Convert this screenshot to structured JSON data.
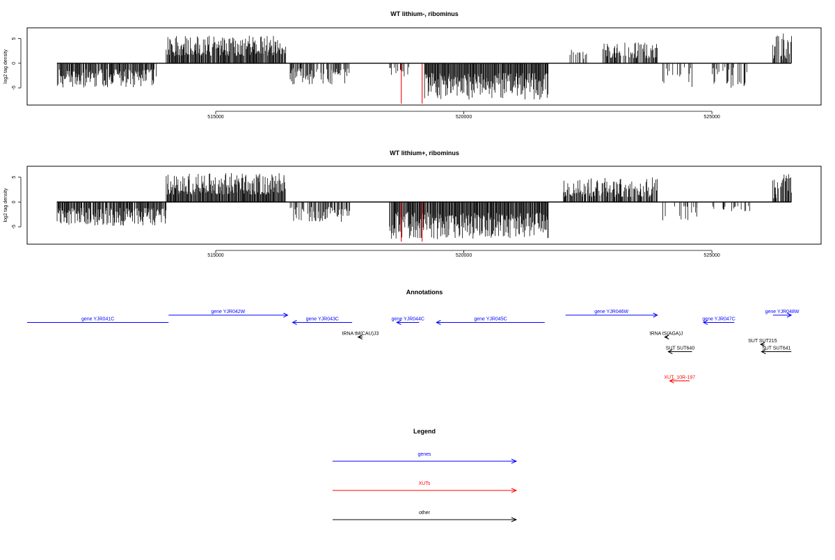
{
  "colors": {
    "gene": "#0000ff",
    "xut": "#ff0000",
    "other": "#000000",
    "highlight": "#ff0000"
  },
  "chart_data": [
    {
      "type": "bar",
      "title": "WT lithium-, ribominus",
      "ylabel": "log2 tag density",
      "xlim": [
        511200,
        527200
      ],
      "ylim": [
        -8.5,
        7.2
      ],
      "x_ticks": [
        515000,
        520000,
        525000
      ],
      "x_tick_labels": [
        "515000",
        "520000",
        "525000"
      ],
      "y_ticks": [
        -5,
        0,
        5
      ],
      "y_tick_labels": [
        "-5",
        "0",
        "5"
      ],
      "baseline": [
        511800,
        526600
      ],
      "segments": [
        {
          "from": 511800,
          "to": 513800,
          "sign": -1,
          "min": 1.2,
          "max": 5.0,
          "density": 0.9
        },
        {
          "from": 514000,
          "to": 516400,
          "sign": 1,
          "min": 1.5,
          "max": 5.6,
          "density": 0.95
        },
        {
          "from": 516500,
          "to": 517700,
          "sign": -1,
          "min": 1.0,
          "max": 4.4,
          "density": 0.6
        },
        {
          "from": 518500,
          "to": 518900,
          "sign": -1,
          "min": 0.8,
          "max": 2.8,
          "density": 0.4
        },
        {
          "from": 519200,
          "to": 521700,
          "sign": -1,
          "min": 2.0,
          "max": 7.4,
          "density": 1.0
        },
        {
          "from": 522100,
          "to": 522500,
          "sign": 1,
          "min": 0.8,
          "max": 3.0,
          "density": 0.4
        },
        {
          "from": 522800,
          "to": 523900,
          "sign": 1,
          "min": 1.0,
          "max": 4.2,
          "density": 0.6
        },
        {
          "from": 524000,
          "to": 524600,
          "sign": -1,
          "min": 0.8,
          "max": 5.2,
          "density": 0.2
        },
        {
          "from": 525000,
          "to": 525700,
          "sign": -1,
          "min": 0.8,
          "max": 5.0,
          "density": 0.35
        },
        {
          "from": 526200,
          "to": 526600,
          "sign": 1,
          "min": 0.6,
          "max": 6.6,
          "density": 0.6
        }
      ],
      "highlights": [
        {
          "x": 518740,
          "value": -8.2
        },
        {
          "x": 519160,
          "value": -8.2
        }
      ]
    },
    {
      "type": "bar",
      "title": "WT lithium+, ribominus",
      "ylabel": "log2 tag density",
      "xlim": [
        511200,
        527200
      ],
      "ylim": [
        -8.5,
        7.2
      ],
      "x_ticks": [
        515000,
        520000,
        525000
      ],
      "x_tick_labels": [
        "515000",
        "520000",
        "525000"
      ],
      "y_ticks": [
        -5,
        0,
        5
      ],
      "y_tick_labels": [
        "-5",
        "0",
        "5"
      ],
      "baseline": [
        511800,
        526600
      ],
      "segments": [
        {
          "from": 511800,
          "to": 514000,
          "sign": -1,
          "min": 1.2,
          "max": 4.8,
          "density": 0.9
        },
        {
          "from": 514000,
          "to": 516400,
          "sign": 1,
          "min": 1.5,
          "max": 5.8,
          "density": 1.0
        },
        {
          "from": 516500,
          "to": 517700,
          "sign": -1,
          "min": 1.0,
          "max": 4.0,
          "density": 0.6
        },
        {
          "from": 518500,
          "to": 519300,
          "sign": -1,
          "min": 2.0,
          "max": 7.8,
          "density": 0.9
        },
        {
          "from": 519300,
          "to": 521700,
          "sign": -1,
          "min": 2.2,
          "max": 7.5,
          "density": 1.0
        },
        {
          "from": 522000,
          "to": 523900,
          "sign": 1,
          "min": 1.0,
          "max": 5.0,
          "density": 0.85
        },
        {
          "from": 524000,
          "to": 524800,
          "sign": -1,
          "min": 0.8,
          "max": 4.8,
          "density": 0.3
        },
        {
          "from": 525000,
          "to": 525800,
          "sign": -1,
          "min": 0.8,
          "max": 2.5,
          "density": 0.3
        },
        {
          "from": 526200,
          "to": 526600,
          "sign": 1,
          "min": 0.6,
          "max": 5.8,
          "density": 0.6
        }
      ],
      "highlights": [
        {
          "x": 518740,
          "value": -8.0
        },
        {
          "x": 519160,
          "value": -8.0
        }
      ]
    }
  ],
  "annotations": {
    "title": "Annotations",
    "xlim": [
      511200,
      527200
    ],
    "items": [
      {
        "label": "gene YJR041C",
        "from": 511200,
        "to": 514050,
        "row": 1,
        "kind": "gene",
        "direction": "none"
      },
      {
        "label": "gene YJR042W",
        "from": 514050,
        "to": 516450,
        "row": 0,
        "kind": "gene",
        "direction": "right"
      },
      {
        "label": "gene YJR043C",
        "from": 516550,
        "to": 517750,
        "row": 1,
        "kind": "gene",
        "direction": "left"
      },
      {
        "label": "gene YJR044C",
        "from": 518650,
        "to": 519100,
        "row": 1,
        "kind": "gene",
        "direction": "left"
      },
      {
        "label": "gene YJR045C",
        "from": 519450,
        "to": 521630,
        "row": 1,
        "kind": "gene",
        "direction": "left"
      },
      {
        "label": "gene YJR046W",
        "from": 522050,
        "to": 523900,
        "row": 0,
        "kind": "gene",
        "direction": "right"
      },
      {
        "label": "gene YJR047C",
        "from": 524830,
        "to": 525450,
        "row": 1,
        "kind": "gene",
        "direction": "left"
      },
      {
        "label": "gene YJR048W",
        "from": 526230,
        "to": 526600,
        "row": 0,
        "kind": "gene",
        "direction": "right"
      },
      {
        "label": "tRNA tM(CAU)J3",
        "from": 517870,
        "to": 517960,
        "row": 3,
        "kind": "other",
        "direction": "left"
      },
      {
        "label": "tRNA tS(AGA)J",
        "from": 524050,
        "to": 524110,
        "row": 3,
        "kind": "other",
        "direction": "left"
      },
      {
        "label": "SUT SUT640",
        "from": 524120,
        "to": 524600,
        "row": 5,
        "kind": "other",
        "direction": "left"
      },
      {
        "label": "SUT SUT215",
        "from": 525980,
        "to": 526060,
        "row": 4,
        "kind": "other",
        "direction": "left"
      },
      {
        "label": "SUT SUT641",
        "from": 526000,
        "to": 526600,
        "row": 5,
        "kind": "other",
        "direction": "left"
      },
      {
        "label": "XUT_10R-197",
        "from": 524150,
        "to": 524550,
        "row": 9,
        "kind": "xut",
        "direction": "left"
      }
    ]
  },
  "legend": {
    "title": "Legend",
    "entries": [
      {
        "label": "genes",
        "kind": "gene"
      },
      {
        "label": "XUTs",
        "kind": "xut"
      },
      {
        "label": "other",
        "kind": "other"
      }
    ]
  }
}
